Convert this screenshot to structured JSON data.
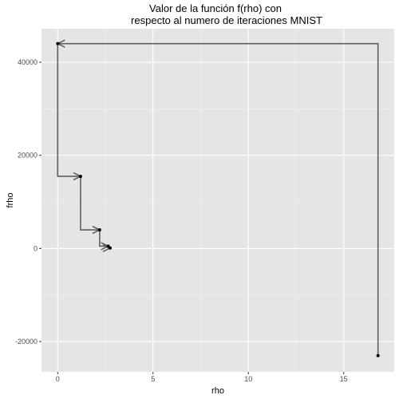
{
  "chart_data": {
    "type": "scatter",
    "title_lines": [
      "Valor de la función f(rho) con",
      "respecto al numero de iteraciones MNIST"
    ],
    "xlabel": "rho",
    "ylabel": "frho",
    "xlim": [
      -0.85,
      17.65
    ],
    "ylim": [
      -26500,
      47200
    ],
    "x_ticks": [
      0,
      5,
      10,
      15
    ],
    "x_tick_labels": [
      "0",
      "5",
      "10",
      "15"
    ],
    "y_ticks": [
      -20000,
      0,
      20000,
      40000
    ],
    "y_tick_labels": [
      "-20000",
      "0",
      "20000",
      "40000"
    ],
    "grid": true,
    "background": "#e5e5e5",
    "point_color": "#000000",
    "arrow_color": "#5f5f5f",
    "points": [
      {
        "x": 16.8,
        "y": -23000
      },
      {
        "x": 0.0,
        "y": 44000
      },
      {
        "x": 1.2,
        "y": 15500
      },
      {
        "x": 2.2,
        "y": 4000
      },
      {
        "x": 2.65,
        "y": 500
      },
      {
        "x": 2.75,
        "y": 100
      }
    ]
  }
}
